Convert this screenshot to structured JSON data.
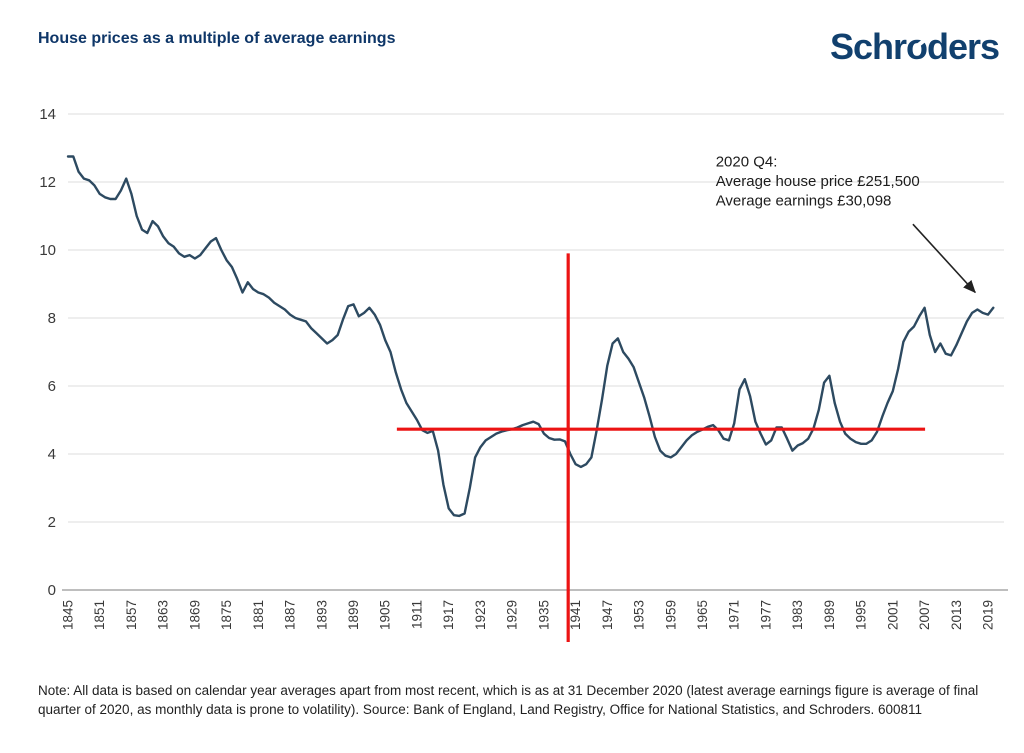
{
  "header": {
    "title": "House prices as a multiple of average earnings",
    "logo": "Schroders"
  },
  "chart_data": {
    "type": "line",
    "title": "House prices as a multiple of average earnings",
    "x_range": [
      1845,
      2020
    ],
    "x_step": 1,
    "series": [
      {
        "name": "House price to average earnings multiple",
        "values": [
          12.75,
          12.75,
          12.3,
          12.1,
          12.05,
          11.9,
          11.65,
          11.55,
          11.5,
          11.5,
          11.75,
          12.1,
          11.65,
          11.0,
          10.6,
          10.5,
          10.85,
          10.7,
          10.4,
          10.2,
          10.1,
          9.9,
          9.8,
          9.85,
          9.75,
          9.85,
          10.05,
          10.25,
          10.35,
          10.0,
          9.7,
          9.5,
          9.15,
          8.75,
          9.05,
          8.85,
          8.75,
          8.7,
          8.6,
          8.45,
          8.35,
          8.25,
          8.1,
          8.0,
          7.95,
          7.9,
          7.7,
          7.55,
          7.4,
          7.25,
          7.35,
          7.5,
          7.95,
          8.35,
          8.4,
          8.05,
          8.15,
          8.3,
          8.1,
          7.8,
          7.35,
          7.0,
          6.4,
          5.9,
          5.5,
          5.25,
          5.0,
          4.7,
          4.62,
          4.68,
          4.1,
          3.1,
          2.4,
          2.2,
          2.18,
          2.25,
          3.0,
          3.9,
          4.2,
          4.4,
          4.5,
          4.6,
          4.66,
          4.7,
          4.73,
          4.78,
          4.85,
          4.9,
          4.95,
          4.88,
          4.6,
          4.47,
          4.42,
          4.43,
          4.37,
          4.0,
          3.7,
          3.62,
          3.7,
          3.9,
          4.7,
          5.6,
          6.6,
          7.25,
          7.4,
          7.0,
          6.8,
          6.55,
          6.1,
          5.65,
          5.1,
          4.5,
          4.1,
          3.95,
          3.9,
          4.0,
          4.2,
          4.4,
          4.55,
          4.65,
          4.72,
          4.8,
          4.85,
          4.7,
          4.45,
          4.4,
          4.9,
          5.9,
          6.2,
          5.7,
          4.95,
          4.6,
          4.28,
          4.4,
          4.78,
          4.78,
          4.45,
          4.1,
          4.25,
          4.32,
          4.45,
          4.75,
          5.3,
          6.1,
          6.3,
          5.5,
          4.95,
          4.6,
          4.45,
          4.35,
          4.3,
          4.3,
          4.4,
          4.65,
          5.1,
          5.5,
          5.85,
          6.5,
          7.3,
          7.6,
          7.75,
          8.05,
          8.3,
          7.5,
          7.0,
          7.25,
          6.95,
          6.9,
          7.2,
          7.55,
          7.9,
          8.15,
          8.25,
          8.15,
          8.1,
          8.3
        ]
      }
    ],
    "ylim": [
      0,
      14
    ],
    "y_ticks": [
      0,
      2,
      4,
      6,
      8,
      10,
      12,
      14
    ],
    "x_ticks": [
      1845,
      1851,
      1857,
      1863,
      1869,
      1875,
      1881,
      1887,
      1893,
      1899,
      1905,
      1911,
      1917,
      1923,
      1929,
      1935,
      1941,
      1947,
      1953,
      1959,
      1965,
      1971,
      1977,
      1983,
      1989,
      1995,
      2001,
      2007,
      2013,
      2019
    ],
    "grid": "horizontal",
    "legend": "none",
    "line_color": "#2d4a61",
    "reference_color": "#ec1313",
    "reference_lines": {
      "horizontal": {
        "value": 4.73,
        "year_start": 1907.2,
        "year_end": 2007.1
      },
      "vertical": {
        "year": 1939.6,
        "value_top": 9.9,
        "value_bottom": -1.53
      }
    },
    "annotation": {
      "lines": [
        "2020 Q4:",
        "Average house price £251,500",
        "Average earnings  £30,098"
      ],
      "anchor_year": 1967.5,
      "anchor_value": 12.45,
      "arrow_from": [
        2004.8,
        10.76
      ],
      "arrow_to": [
        2016.6,
        8.75
      ]
    }
  },
  "note": "Note: All data is based on calendar year averages apart from most recent, which is as at 31 December 2020 (latest average earnings figure is average of final quarter of 2020, as monthly data is prone to volatility). Source: Bank of England, Land Registry, Office for National Statistics, and Schroders. 600811"
}
